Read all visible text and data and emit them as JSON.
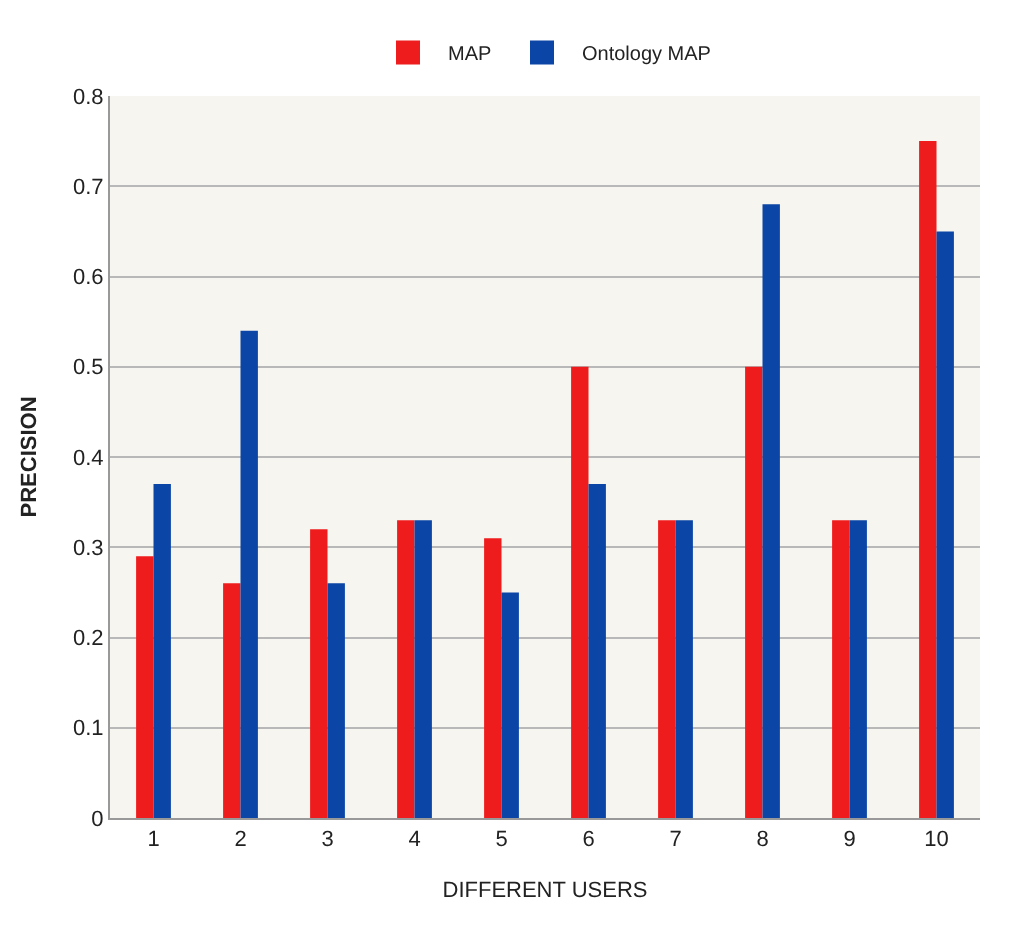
{
  "chart_data": {
    "type": "bar",
    "xlabel": "DIFFERENT USERS",
    "ylabel": "PRECISION",
    "categories": [
      "1",
      "2",
      "3",
      "4",
      "5",
      "6",
      "7",
      "8",
      "9",
      "10"
    ],
    "series": [
      {
        "name": "MAP",
        "color": "#ee1c1c",
        "values": [
          0.29,
          0.26,
          0.32,
          0.33,
          0.31,
          0.5,
          0.33,
          0.5,
          0.33,
          0.75
        ]
      },
      {
        "name": "Ontology MAP",
        "color": "#0b45a5",
        "values": [
          0.37,
          0.54,
          0.26,
          0.33,
          0.25,
          0.37,
          0.33,
          0.68,
          0.33,
          0.65
        ]
      }
    ],
    "ylim": [
      0,
      0.8
    ],
    "yticks": [
      0,
      0.1,
      0.2,
      0.3,
      0.4,
      0.5,
      0.6,
      0.7,
      0.8
    ],
    "grid": "y",
    "legend": "top"
  }
}
